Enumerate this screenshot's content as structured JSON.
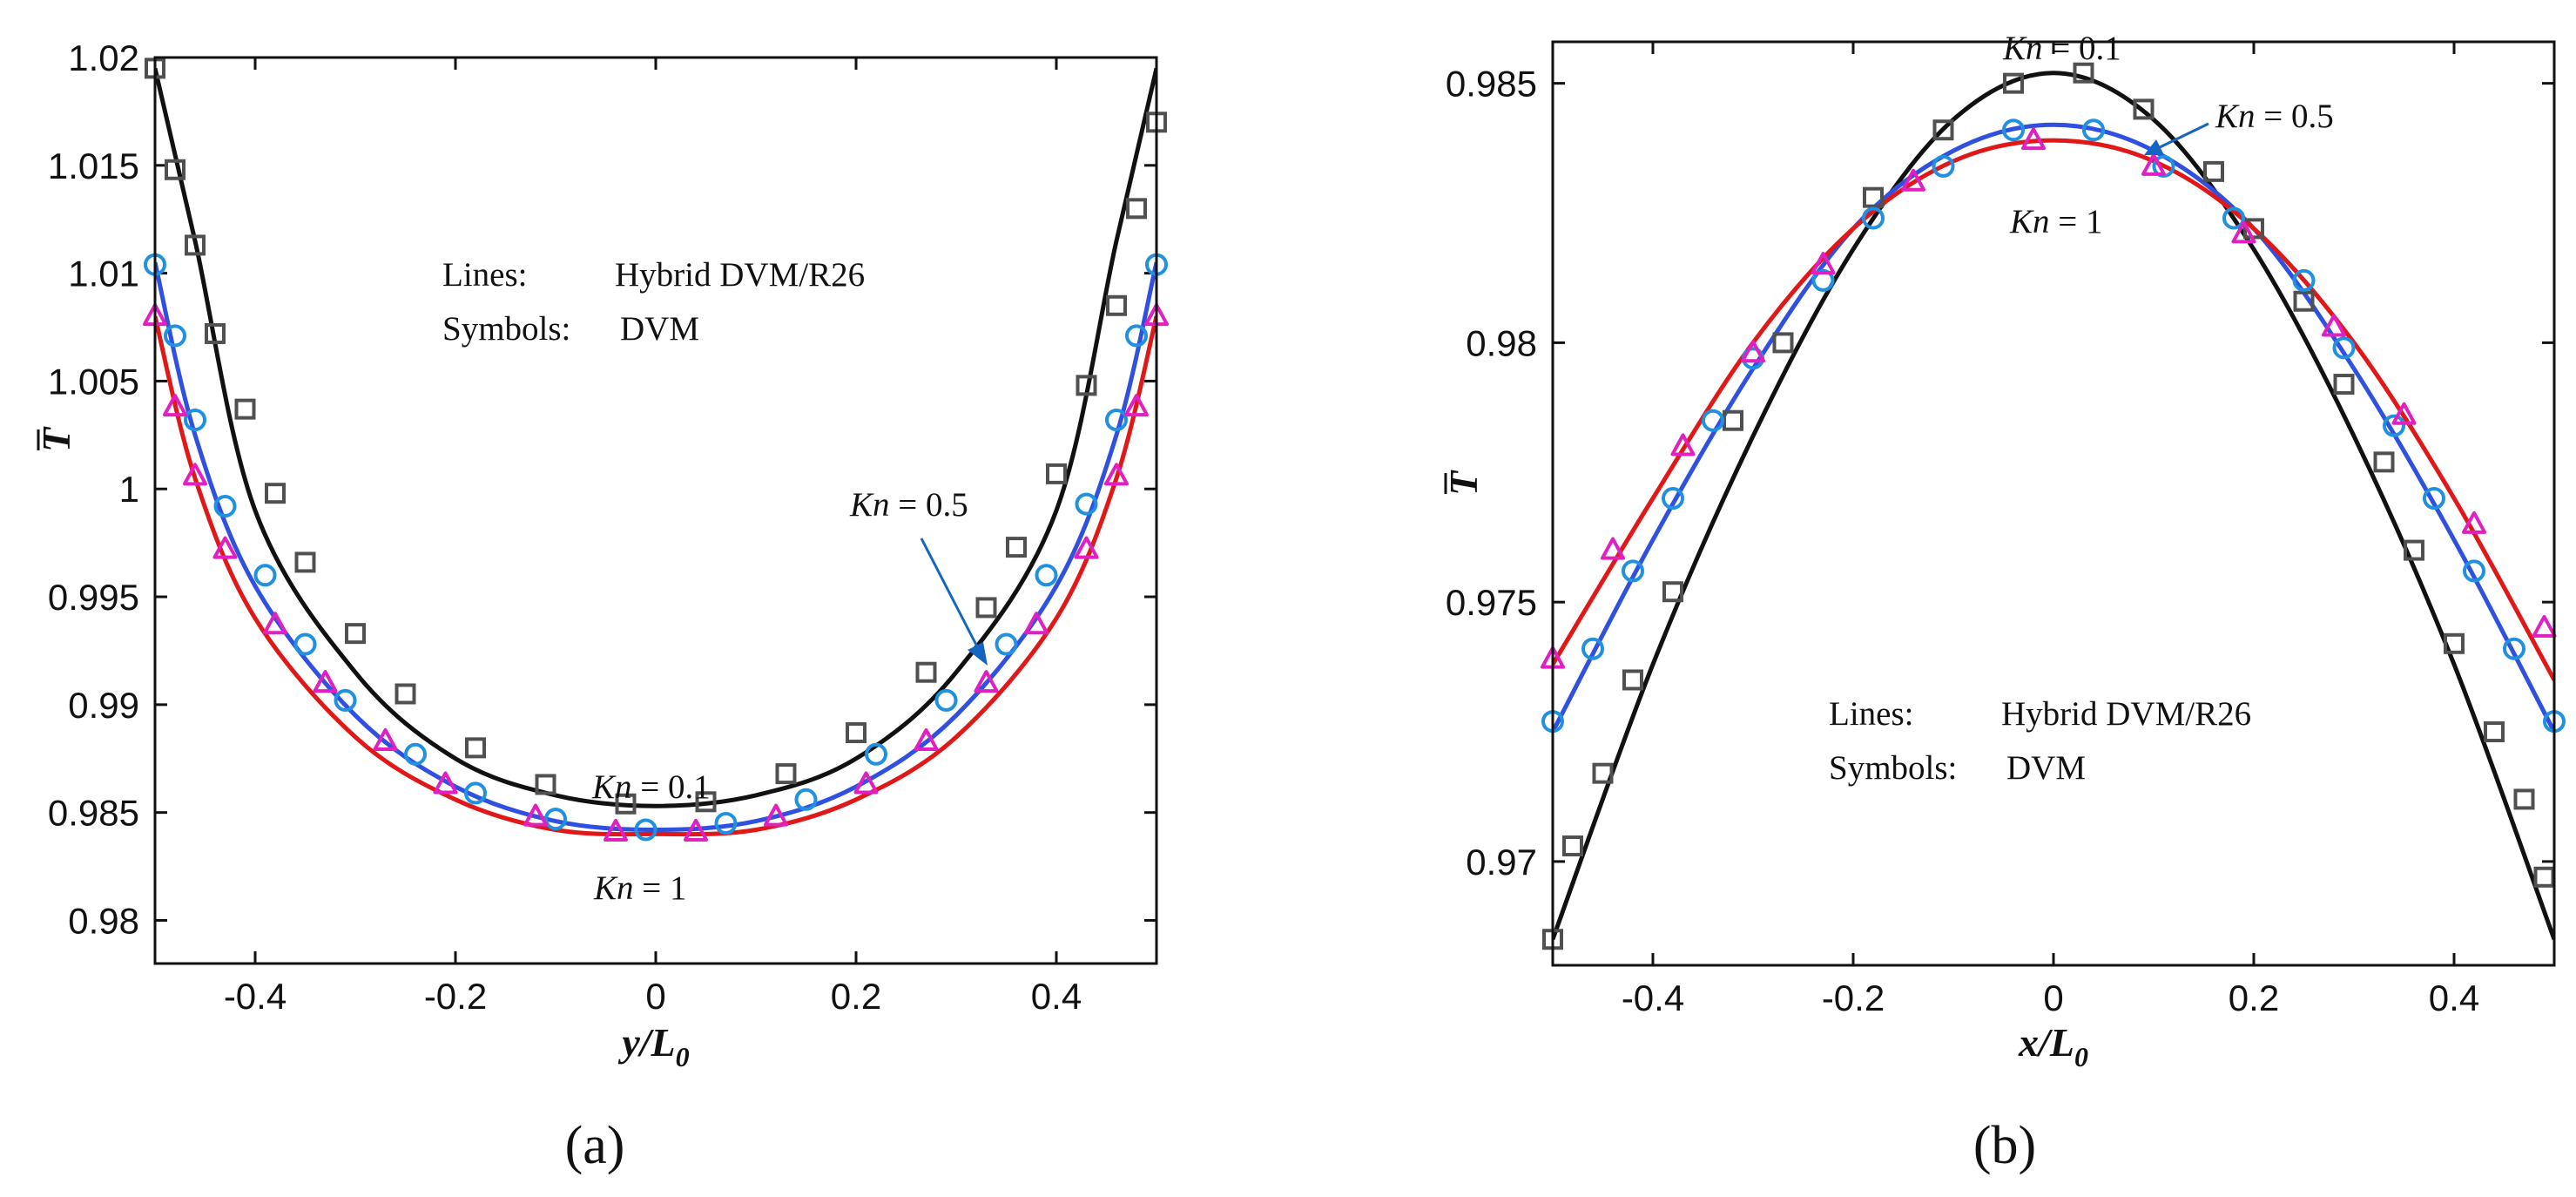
{
  "chart_data": [
    {
      "type": "line",
      "panel_label": "(a)",
      "xlabel": "y/L",
      "xlabel_sub": "0",
      "ylabel": "T",
      "xlim": [
        -0.5,
        0.5
      ],
      "ylim": [
        0.978,
        1.02
      ],
      "xticks": [
        -0.4,
        -0.2,
        0,
        0.2,
        0.4
      ],
      "xtick_labels": [
        "-0.4",
        "-0.2",
        "0",
        "0.2",
        "0.4"
      ],
      "yticks": [
        0.98,
        0.985,
        0.99,
        0.995,
        1.0,
        1.005,
        1.01,
        1.015,
        1.02
      ],
      "ytick_labels": [
        "0.98",
        "0.985",
        "0.99",
        "0.995",
        "1",
        "1.005",
        "1.01",
        "1.015",
        "1.02"
      ],
      "legend": {
        "lines_label": "Lines:",
        "lines_value": "Hybrid DVM/R26",
        "symbols_label": "Symbols:",
        "symbols_value": "DVM"
      },
      "annotations": [
        {
          "kn": "Kn",
          "value": " = 0.1"
        },
        {
          "kn": "Kn",
          "value": " = 0.5"
        },
        {
          "kn": "Kn",
          "value": " = 1"
        }
      ],
      "series": [
        {
          "name": "Kn = 0.1",
          "line_color": "#111111",
          "marker": "square",
          "marker_color": "#505050",
          "line": {
            "x": [
              -0.5,
              -0.46,
              -0.4,
              -0.3,
              -0.2,
              -0.1,
              0,
              0.1,
              0.2,
              0.3,
              0.4,
              0.46,
              0.5
            ],
            "y": [
              1.0195,
              1.0115,
              0.999,
              0.9915,
              0.9875,
              0.9858,
              0.9853,
              0.9858,
              0.9875,
              0.9915,
              0.999,
              1.0115,
              1.0195
            ]
          },
          "points": {
            "x": [
              -0.5,
              -0.48,
              -0.46,
              -0.44,
              -0.41,
              -0.38,
              -0.35,
              -0.3,
              -0.25,
              -0.18,
              -0.11,
              -0.03,
              0.05,
              0.13,
              0.2,
              0.27,
              0.33,
              0.36,
              0.4,
              0.43,
              0.46,
              0.48,
              0.5
            ],
            "y": [
              1.0195,
              1.0148,
              1.0113,
              1.0072,
              1.0037,
              0.9998,
              0.9966,
              0.9933,
              0.9905,
              0.988,
              0.9863,
              0.9854,
              0.9855,
              0.9868,
              0.9887,
              0.9915,
              0.9945,
              0.9973,
              1.0007,
              1.0048,
              1.0085,
              1.013,
              1.017
            ]
          }
        },
        {
          "name": "Kn = 0.5",
          "line_color": "#3050e0",
          "marker": "circle",
          "marker_color": "#2090e0",
          "line": {
            "x": [
              -0.5,
              -0.46,
              -0.4,
              -0.3,
              -0.2,
              -0.1,
              0,
              0.1,
              0.2,
              0.3,
              0.4,
              0.46,
              0.5
            ],
            "y": [
              1.0105,
              1.0025,
              0.9955,
              0.9895,
              0.9862,
              0.9846,
              0.9842,
              0.9846,
              0.9862,
              0.9895,
              0.9955,
              1.0025,
              1.0105
            ]
          },
          "points": {
            "x": [
              -0.5,
              -0.48,
              -0.46,
              -0.43,
              -0.39,
              -0.35,
              -0.31,
              -0.24,
              -0.18,
              -0.1,
              -0.01,
              0.07,
              0.15,
              0.22,
              0.29,
              0.35,
              0.39,
              0.43,
              0.46,
              0.48,
              0.5
            ],
            "y": [
              1.0104,
              1.0071,
              1.0032,
              0.9992,
              0.996,
              0.9928,
              0.9902,
              0.9877,
              0.9859,
              0.9847,
              0.9842,
              0.9845,
              0.9856,
              0.9877,
              0.9902,
              0.9928,
              0.996,
              0.9993,
              1.0032,
              1.0071,
              1.0104
            ]
          }
        },
        {
          "name": "Kn = 1",
          "line_color": "#e01818",
          "marker": "triangle",
          "marker_color": "#e020c0",
          "line": {
            "x": [
              -0.5,
              -0.46,
              -0.4,
              -0.3,
              -0.2,
              -0.1,
              0,
              0.1,
              0.2,
              0.3,
              0.4,
              0.46,
              0.5
            ],
            "y": [
              1.008,
              1.0005,
              0.994,
              0.9885,
              0.9856,
              0.9842,
              0.984,
              0.9842,
              0.9856,
              0.9885,
              0.994,
              1.0005,
              1.008
            ]
          },
          "points": {
            "x": [
              -0.5,
              -0.48,
              -0.46,
              -0.43,
              -0.38,
              -0.33,
              -0.27,
              -0.21,
              -0.12,
              -0.04,
              0.04,
              0.12,
              0.21,
              0.27,
              0.33,
              0.38,
              0.43,
              0.46,
              0.48,
              0.5
            ],
            "y": [
              1.008,
              1.0038,
              1.0006,
              0.9972,
              0.9937,
              0.991,
              0.9883,
              0.9863,
              0.9848,
              0.9841,
              0.9841,
              0.9848,
              0.9863,
              0.9883,
              0.991,
              0.9937,
              0.9972,
              1.0006,
              1.0038,
              1.008
            ]
          }
        }
      ]
    },
    {
      "type": "line",
      "panel_label": "(b)",
      "xlabel": "x/L",
      "xlabel_sub": "0",
      "ylabel": "T",
      "xlim": [
        -0.5,
        0.5
      ],
      "ylim": [
        0.968,
        0.9858
      ],
      "xticks": [
        -0.4,
        -0.2,
        0,
        0.2,
        0.4
      ],
      "xtick_labels": [
        "-0.4",
        "-0.2",
        "0",
        "0.2",
        "0.4"
      ],
      "yticks": [
        0.97,
        0.975,
        0.98,
        0.985
      ],
      "ytick_labels": [
        "0.97",
        "0.975",
        "0.98",
        "0.985"
      ],
      "legend": {
        "lines_label": "Lines:",
        "lines_value": "Hybrid DVM/R26",
        "symbols_label": "Symbols:",
        "symbols_value": "DVM"
      },
      "annotations": [
        {
          "kn": "Kn",
          "value": " = 0.1"
        },
        {
          "kn": "Kn",
          "value": " = 0.5"
        },
        {
          "kn": "Kn",
          "value": " = 1"
        }
      ],
      "series": [
        {
          "name": "Kn = 0.1",
          "line_color": "#111111",
          "marker": "square",
          "marker_color": "#505050",
          "line": {
            "x": [
              -0.5,
              -0.4,
              -0.3,
              -0.2,
              -0.1,
              0,
              0.1,
              0.2,
              0.3,
              0.4,
              0.5
            ],
            "y": [
              0.9685,
              0.9738,
              0.9782,
              0.9818,
              0.9843,
              0.9852,
              0.9843,
              0.9818,
              0.9782,
              0.9738,
              0.9685
            ]
          },
          "points": {
            "x": [
              -0.5,
              -0.48,
              -0.45,
              -0.42,
              -0.38,
              -0.32,
              -0.27,
              -0.18,
              -0.11,
              -0.04,
              0.03,
              0.09,
              0.16,
              0.2,
              0.25,
              0.29,
              0.33,
              0.36,
              0.4,
              0.44,
              0.47,
              0.49
            ],
            "y": [
              0.9685,
              0.9703,
              0.9717,
              0.9735,
              0.9752,
              0.9785,
              0.98,
              0.9828,
              0.9841,
              0.985,
              0.9852,
              0.9845,
              0.9833,
              0.9822,
              0.9808,
              0.9792,
              0.9777,
              0.976,
              0.9742,
              0.9725,
              0.9712,
              0.9697
            ]
          }
        },
        {
          "name": "Kn = 0.5",
          "line_color": "#3050e0",
          "marker": "circle",
          "marker_color": "#2090e0",
          "line": {
            "x": [
              -0.5,
              -0.4,
              -0.3,
              -0.2,
              -0.1,
              0,
              0.1,
              0.2,
              0.3,
              0.4,
              0.5
            ],
            "y": [
              0.9725,
              0.9762,
              0.9795,
              0.9822,
              0.9837,
              0.9842,
              0.9837,
              0.9822,
              0.9795,
              0.9762,
              0.9725
            ]
          },
          "points": {
            "x": [
              -0.5,
              -0.46,
              -0.42,
              -0.38,
              -0.34,
              -0.3,
              -0.23,
              -0.18,
              -0.11,
              -0.04,
              0.04,
              0.11,
              0.18,
              0.25,
              0.29,
              0.34,
              0.38,
              0.42,
              0.46,
              0.5
            ],
            "y": [
              0.9727,
              0.9741,
              0.9756,
              0.977,
              0.9785,
              0.9797,
              0.9812,
              0.9824,
              0.9834,
              0.9841,
              0.9841,
              0.9834,
              0.9824,
              0.9812,
              0.9799,
              0.9784,
              0.977,
              0.9756,
              0.9741,
              0.9727
            ]
          }
        },
        {
          "name": "Kn = 1",
          "line_color": "#e01818",
          "marker": "triangle",
          "marker_color": "#e020c0",
          "line": {
            "x": [
              -0.5,
              -0.4,
              -0.3,
              -0.2,
              -0.1,
              0,
              0.1,
              0.2,
              0.3,
              0.4,
              0.5
            ],
            "y": [
              0.9738,
              0.977,
              0.98,
              0.9822,
              0.9835,
              0.9839,
              0.9835,
              0.9822,
              0.98,
              0.977,
              0.9735
            ]
          },
          "points": {
            "x": [
              -0.5,
              -0.44,
              -0.37,
              -0.3,
              -0.23,
              -0.14,
              -0.02,
              0.1,
              0.19,
              0.28,
              0.35,
              0.42,
              0.49
            ],
            "y": [
              0.9739,
              0.976,
              0.978,
              0.9798,
              0.9815,
              0.9831,
              0.9839,
              0.9834,
              0.9821,
              0.9803,
              0.9786,
              0.9765,
              0.9745
            ]
          }
        }
      ]
    }
  ]
}
